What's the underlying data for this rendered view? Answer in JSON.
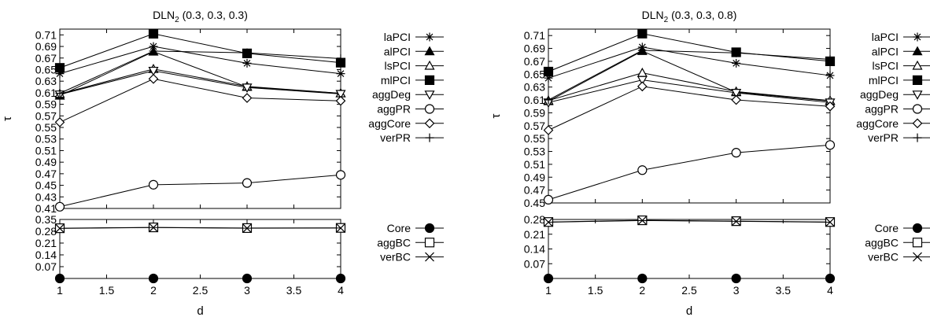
{
  "chart_data": [
    {
      "type": "line",
      "title_main": "DLN",
      "title_sub": "2",
      "title_rest": " (0.3, 0.3, 0.3)",
      "xlabel": "d",
      "ylabel": "τ",
      "xlim": [
        1,
        4
      ],
      "x_ticks": [
        "1",
        "1.5",
        "2",
        "2.5",
        "3",
        "3.5",
        "4"
      ],
      "top": {
        "ylim": [
          0.41,
          0.72
        ],
        "y_ticks": [
          "0.41",
          "0.43",
          "0.45",
          "0.47",
          "0.49",
          "0.51",
          "0.53",
          "0.55",
          "0.57",
          "0.59",
          "0.61",
          "0.63",
          "0.65",
          "0.67",
          "0.69",
          "0.71"
        ],
        "x": [
          1,
          2,
          3,
          4
        ],
        "series": [
          {
            "name": "laPCI",
            "marker": "star",
            "values": [
              0.643,
              0.69,
              0.661,
              0.643
            ]
          },
          {
            "name": "alPCI",
            "marker": "triangle-filled",
            "values": [
              0.605,
              0.681,
              0.62,
              0.609
            ]
          },
          {
            "name": "lsPCI",
            "marker": "triangle-open",
            "values": [
              0.608,
              0.651,
              0.621,
              0.609
            ]
          },
          {
            "name": "mlPCI",
            "marker": "square-filled",
            "values": [
              0.653,
              0.712,
              0.678,
              0.662
            ]
          },
          {
            "name": "aggDeg",
            "marker": "triangle-down-open",
            "values": [
              0.607,
              0.648,
              0.619,
              0.608
            ]
          },
          {
            "name": "aggPR",
            "marker": "circle-open",
            "values": [
              0.413,
              0.451,
              0.454,
              0.468
            ]
          },
          {
            "name": "aggCore",
            "marker": "diamond-open",
            "values": [
              0.559,
              0.634,
              0.601,
              0.596
            ]
          },
          {
            "name": "verPR",
            "marker": "plus",
            "values": [
              0.609,
              0.682,
              0.679,
              0.669
            ]
          }
        ]
      },
      "bottom": {
        "ylim": [
          0,
          0.35
        ],
        "y_ticks": [
          "0.07",
          "0.14",
          "0.21",
          "0.28",
          "0.35"
        ],
        "x": [
          1,
          2,
          3,
          4
        ],
        "series": [
          {
            "name": "Core",
            "marker": "circle-filled",
            "values": [
              0.0,
              0.0,
              0.0,
              0.0
            ]
          },
          {
            "name": "aggBC",
            "marker": "square-open",
            "values": [
              0.298,
              0.303,
              0.299,
              0.3
            ]
          },
          {
            "name": "verBC",
            "marker": "x",
            "values": [
              0.297,
              0.302,
              0.298,
              0.299
            ]
          }
        ]
      }
    },
    {
      "type": "line",
      "title_main": "DLN",
      "title_sub": "2",
      "title_rest": " (0.3, 0.3, 0.8)",
      "xlabel": "d",
      "ylabel": "τ",
      "xlim": [
        1,
        4
      ],
      "x_ticks": [
        "1",
        "1.5",
        "2",
        "2.5",
        "3",
        "3.5",
        "4"
      ],
      "top": {
        "ylim": [
          0.45,
          0.72
        ],
        "y_ticks": [
          "0.45",
          "0.47",
          "0.49",
          "0.51",
          "0.53",
          "0.55",
          "0.57",
          "0.59",
          "0.61",
          "0.63",
          "0.65",
          "0.67",
          "0.69",
          "0.71"
        ],
        "x": [
          1,
          2,
          3,
          4
        ],
        "series": [
          {
            "name": "laPCI",
            "marker": "star",
            "values": [
              0.644,
              0.692,
              0.667,
              0.648
            ]
          },
          {
            "name": "alPCI",
            "marker": "triangle-filled",
            "values": [
              0.608,
              0.686,
              0.622,
              0.608
            ]
          },
          {
            "name": "lsPCI",
            "marker": "triangle-open",
            "values": [
              0.609,
              0.652,
              0.623,
              0.609
            ]
          },
          {
            "name": "mlPCI",
            "marker": "square-filled",
            "values": [
              0.654,
              0.713,
              0.684,
              0.67
            ]
          },
          {
            "name": "aggDeg",
            "marker": "triangle-down-open",
            "values": [
              0.606,
              0.641,
              0.621,
              0.606
            ]
          },
          {
            "name": "aggPR",
            "marker": "circle-open",
            "values": [
              0.455,
              0.501,
              0.528,
              0.54
            ]
          },
          {
            "name": "aggCore",
            "marker": "diamond-open",
            "values": [
              0.563,
              0.631,
              0.61,
              0.6
            ]
          },
          {
            "name": "verPR",
            "marker": "plus",
            "values": [
              0.61,
              0.687,
              0.683,
              0.673
            ]
          }
        ]
      },
      "bottom": {
        "ylim": [
          0,
          0.28
        ],
        "y_ticks": [
          "0.07",
          "0.14",
          "0.21",
          "0.28"
        ],
        "x": [
          1,
          2,
          3,
          4
        ],
        "series": [
          {
            "name": "Core",
            "marker": "circle-filled",
            "values": [
              0.0,
              0.0,
              0.0,
              0.0
            ]
          },
          {
            "name": "aggBC",
            "marker": "square-open",
            "values": [
              0.268,
              0.276,
              0.272,
              0.268
            ]
          },
          {
            "name": "verBC",
            "marker": "x",
            "values": [
              0.267,
              0.275,
              0.271,
              0.267
            ]
          }
        ]
      }
    }
  ]
}
